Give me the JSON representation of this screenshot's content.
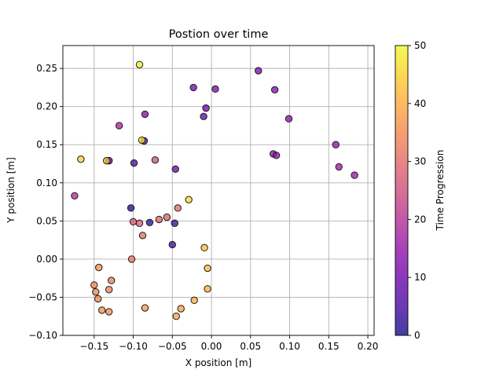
{
  "chart_data": {
    "type": "scatter",
    "title": "Postion over time",
    "xlabel": "X position [m]",
    "ylabel": "Y position [m]",
    "xlim": [
      -0.19,
      0.208
    ],
    "ylim": [
      -0.1,
      0.28
    ],
    "xticks": [
      -0.15,
      -0.1,
      -0.05,
      0.0,
      0.05,
      0.1,
      0.15,
      0.2
    ],
    "xtick_labels": [
      "−0.15",
      "−0.10",
      "−0.05",
      "0.00",
      "0.05",
      "0.10",
      "0.15",
      "0.20"
    ],
    "yticks": [
      -0.1,
      -0.05,
      0.0,
      0.05,
      0.1,
      0.15,
      0.2,
      0.25
    ],
    "ytick_labels": [
      "−0.10",
      "−0.05",
      "0.00",
      "0.05",
      "0.10",
      "0.15",
      "0.20",
      "0.25"
    ],
    "grid": true,
    "colormap": "plasma",
    "colorbar": {
      "label": "Time Progression",
      "range": [
        0,
        50
      ],
      "ticks": [
        0,
        10,
        20,
        30,
        40,
        50
      ],
      "tick_labels": [
        "0",
        "10",
        "20",
        "30",
        "40",
        "50"
      ]
    },
    "points": [
      {
        "x": -0.103,
        "y": 0.067,
        "t": 1
      },
      {
        "x": -0.079,
        "y": 0.048,
        "t": 2
      },
      {
        "x": -0.047,
        "y": 0.047,
        "t": 3
      },
      {
        "x": -0.05,
        "y": 0.019,
        "t": 4
      },
      {
        "x": -0.099,
        "y": 0.126,
        "t": 5
      },
      {
        "x": -0.086,
        "y": 0.155,
        "t": 6
      },
      {
        "x": -0.131,
        "y": 0.129,
        "t": 7
      },
      {
        "x": -0.01,
        "y": 0.187,
        "t": 8
      },
      {
        "x": -0.046,
        "y": 0.118,
        "t": 9
      },
      {
        "x": -0.007,
        "y": 0.198,
        "t": 10
      },
      {
        "x": 0.005,
        "y": 0.223,
        "t": 11
      },
      {
        "x": -0.023,
        "y": 0.225,
        "t": 11
      },
      {
        "x": -0.085,
        "y": 0.19,
        "t": 12
      },
      {
        "x": 0.06,
        "y": 0.247,
        "t": 12
      },
      {
        "x": 0.081,
        "y": 0.222,
        "t": 13
      },
      {
        "x": 0.099,
        "y": 0.184,
        "t": 14
      },
      {
        "x": 0.079,
        "y": 0.138,
        "t": 14
      },
      {
        "x": 0.083,
        "y": 0.136,
        "t": 15
      },
      {
        "x": 0.159,
        "y": 0.15,
        "t": 15
      },
      {
        "x": 0.163,
        "y": 0.121,
        "t": 16
      },
      {
        "x": 0.183,
        "y": 0.11,
        "t": 16
      },
      {
        "x": -0.118,
        "y": 0.175,
        "t": 18
      },
      {
        "x": -0.175,
        "y": 0.083,
        "t": 19
      },
      {
        "x": -0.072,
        "y": 0.13,
        "t": 26
      },
      {
        "x": -0.1,
        "y": 0.049,
        "t": 27
      },
      {
        "x": -0.092,
        "y": 0.047,
        "t": 28
      },
      {
        "x": -0.067,
        "y": 0.052,
        "t": 29
      },
      {
        "x": -0.057,
        "y": 0.055,
        "t": 29
      },
      {
        "x": -0.043,
        "y": 0.067,
        "t": 30
      },
      {
        "x": -0.088,
        "y": 0.031,
        "t": 31
      },
      {
        "x": -0.102,
        "y": 0.0,
        "t": 32
      },
      {
        "x": -0.128,
        "y": -0.028,
        "t": 33
      },
      {
        "x": -0.131,
        "y": -0.04,
        "t": 34
      },
      {
        "x": -0.15,
        "y": -0.034,
        "t": 34
      },
      {
        "x": -0.148,
        "y": -0.043,
        "t": 35
      },
      {
        "x": -0.145,
        "y": -0.052,
        "t": 35
      },
      {
        "x": -0.144,
        "y": -0.011,
        "t": 36
      },
      {
        "x": -0.14,
        "y": -0.067,
        "t": 36
      },
      {
        "x": -0.131,
        "y": -0.069,
        "t": 36
      },
      {
        "x": -0.085,
        "y": -0.064,
        "t": 38
      },
      {
        "x": -0.039,
        "y": -0.065,
        "t": 39
      },
      {
        "x": -0.045,
        "y": -0.075,
        "t": 39
      },
      {
        "x": -0.022,
        "y": -0.054,
        "t": 40
      },
      {
        "x": -0.005,
        "y": -0.039,
        "t": 41
      },
      {
        "x": -0.005,
        "y": -0.012,
        "t": 42
      },
      {
        "x": -0.009,
        "y": 0.015,
        "t": 43
      },
      {
        "x": -0.134,
        "y": 0.129,
        "t": 44
      },
      {
        "x": -0.167,
        "y": 0.131,
        "t": 45
      },
      {
        "x": -0.029,
        "y": 0.078,
        "t": 46
      },
      {
        "x": -0.089,
        "y": 0.156,
        "t": 47
      },
      {
        "x": -0.092,
        "y": 0.255,
        "t": 49
      }
    ]
  }
}
